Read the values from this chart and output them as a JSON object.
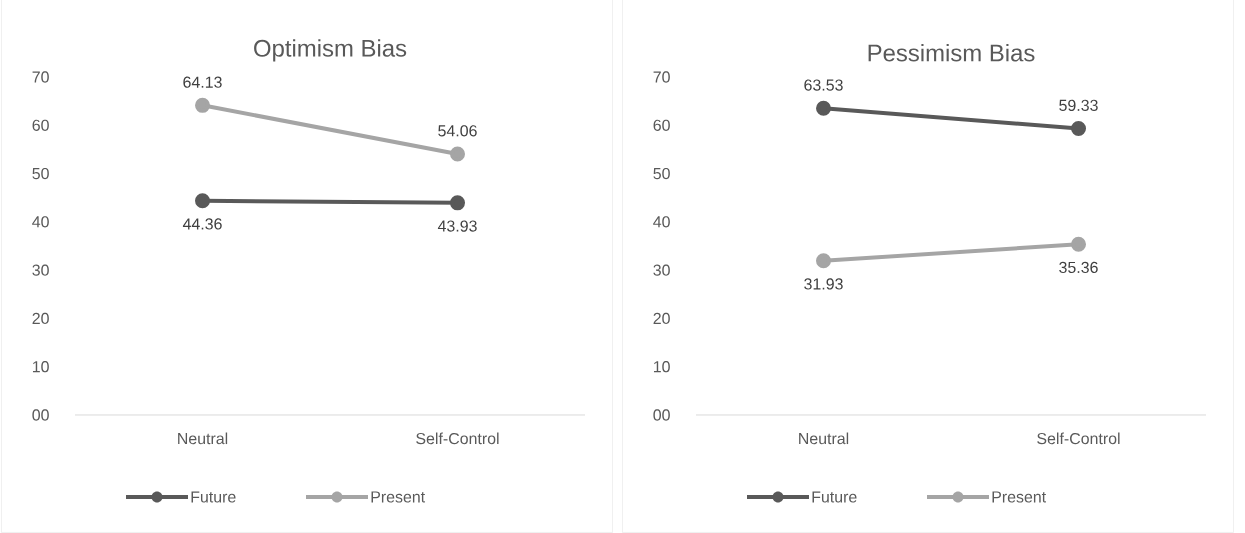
{
  "chart_data": [
    {
      "type": "line",
      "title": "Optimism Bias",
      "categories": [
        "Neutral",
        "Self-Control"
      ],
      "series": [
        {
          "name": "Future",
          "color": "#595959",
          "values": [
            44.36,
            43.93
          ]
        },
        {
          "name": "Present",
          "color": "#a5a5a5",
          "values": [
            64.13,
            54.06
          ]
        }
      ],
      "ylim": [
        0,
        70
      ],
      "yticks": [
        {
          "value": 0,
          "label": "00"
        },
        10,
        20,
        30,
        40,
        50,
        60,
        70
      ],
      "data_labels": true,
      "legend": "bottom",
      "marker": "circle",
      "grid": false
    },
    {
      "type": "line",
      "title": "Pessimism Bias",
      "categories": [
        "Neutral",
        "Self-Control"
      ],
      "series": [
        {
          "name": "Future",
          "color": "#595959",
          "values": [
            63.53,
            59.33
          ]
        },
        {
          "name": "Present",
          "color": "#a5a5a5",
          "values": [
            31.93,
            35.36
          ]
        }
      ],
      "ylim": [
        0,
        70
      ],
      "yticks": [
        {
          "value": 0,
          "label": "00"
        },
        10,
        20,
        30,
        40,
        50,
        60,
        70
      ],
      "data_labels": true,
      "legend": "bottom",
      "marker": "circle",
      "grid": false
    }
  ]
}
